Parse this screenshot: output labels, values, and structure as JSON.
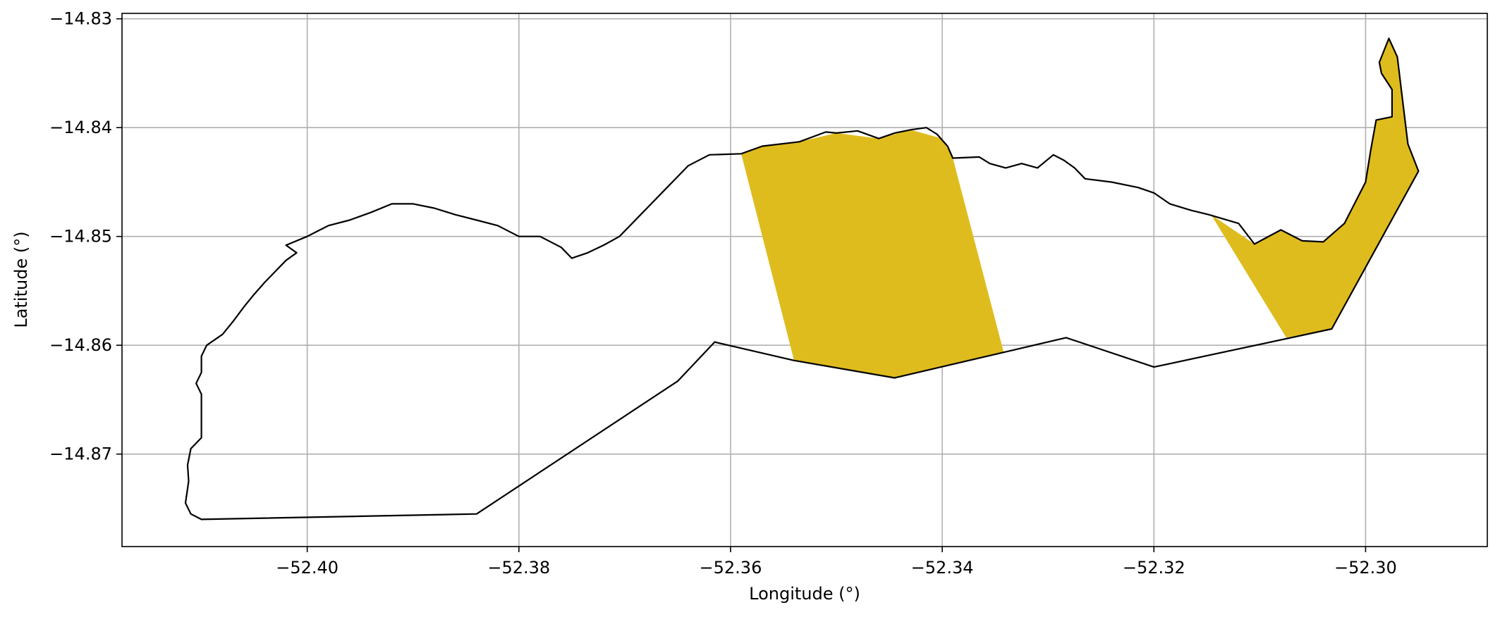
{
  "chart_data": {
    "type": "map",
    "xlabel": "Longitude (°)",
    "ylabel": "Latitude (°)",
    "xlim": [
      -52.4175,
      -52.2885
    ],
    "ylim": [
      -14.8785,
      -14.8295
    ],
    "xticks": [
      -52.4,
      -52.38,
      -52.36,
      -52.34,
      -52.32,
      -52.3
    ],
    "yticks": [
      -14.83,
      -14.84,
      -14.85,
      -14.86,
      -14.87
    ],
    "xtick_labels": [
      "−52.40",
      "−52.38",
      "−52.36",
      "−52.34",
      "−52.32",
      "−52.30"
    ],
    "ytick_labels": [
      "−14.83",
      "−14.84",
      "−14.85",
      "−14.86",
      "−14.87"
    ],
    "grid": true,
    "grid_color": "#b0b0b0",
    "fill_color": "#dfbc1e",
    "outline_color": "#000000",
    "highlight_regions": [
      {
        "points": [
          [
            -52.359,
            -14.8424
          ],
          [
            -52.357,
            -14.8417
          ],
          [
            -52.3535,
            -14.8413
          ],
          [
            -52.35,
            -14.8405
          ],
          [
            -52.346,
            -14.841
          ],
          [
            -52.343,
            -14.8402
          ],
          [
            -52.34,
            -14.841
          ],
          [
            -52.339,
            -14.8428
          ],
          [
            -52.3342,
            -14.8606
          ],
          [
            -52.3445,
            -14.863
          ],
          [
            -52.354,
            -14.8614
          ]
        ]
      },
      {
        "points": [
          [
            -52.3146,
            -14.848
          ],
          [
            -52.3105,
            -14.8507
          ],
          [
            -52.308,
            -14.8494
          ],
          [
            -52.306,
            -14.8504
          ],
          [
            -52.304,
            -14.8505
          ],
          [
            -52.302,
            -14.8488
          ],
          [
            -52.3,
            -14.845
          ],
          [
            -52.2995,
            -14.842
          ],
          [
            -52.299,
            -14.8393
          ],
          [
            -52.2975,
            -14.839
          ],
          [
            -52.2975,
            -14.8365
          ],
          [
            -52.2985,
            -14.835
          ],
          [
            -52.2987,
            -14.834
          ],
          [
            -52.2978,
            -14.8318
          ],
          [
            -52.297,
            -14.8335
          ],
          [
            -52.296,
            -14.8415
          ],
          [
            -52.295,
            -14.844
          ],
          [
            -52.3032,
            -14.8585
          ],
          [
            -52.3075,
            -14.8593
          ]
        ]
      }
    ],
    "coastline": [
      [
        -52.359,
        -14.8424
      ],
      [
        -52.357,
        -14.8417
      ],
      [
        -52.3535,
        -14.8413
      ],
      [
        -52.351,
        -14.8404
      ],
      [
        -52.35,
        -14.8405
      ],
      [
        -52.348,
        -14.8403
      ],
      [
        -52.346,
        -14.841
      ],
      [
        -52.3445,
        -14.8405
      ],
      [
        -52.343,
        -14.8402
      ],
      [
        -52.3415,
        -14.84
      ],
      [
        -52.3405,
        -14.8406
      ],
      [
        -52.3395,
        -14.8417
      ],
      [
        -52.339,
        -14.8428
      ],
      [
        -52.3365,
        -14.8427
      ],
      [
        -52.3355,
        -14.8433
      ],
      [
        -52.334,
        -14.8437
      ],
      [
        -52.3325,
        -14.8433
      ],
      [
        -52.331,
        -14.8437
      ],
      [
        -52.3295,
        -14.8425
      ],
      [
        -52.3285,
        -14.843
      ],
      [
        -52.3275,
        -14.8437
      ],
      [
        -52.3265,
        -14.8447
      ],
      [
        -52.324,
        -14.845
      ],
      [
        -52.3215,
        -14.8455
      ],
      [
        -52.32,
        -14.846
      ],
      [
        -52.3185,
        -14.847
      ],
      [
        -52.3165,
        -14.8476
      ],
      [
        -52.3148,
        -14.848
      ],
      [
        -52.312,
        -14.8488
      ],
      [
        -52.3105,
        -14.8507
      ],
      [
        -52.308,
        -14.8494
      ],
      [
        -52.306,
        -14.8504
      ],
      [
        -52.304,
        -14.8505
      ],
      [
        -52.302,
        -14.8488
      ],
      [
        -52.3,
        -14.845
      ],
      [
        -52.2995,
        -14.842
      ],
      [
        -52.299,
        -14.8393
      ],
      [
        -52.2975,
        -14.839
      ],
      [
        -52.2975,
        -14.8365
      ],
      [
        -52.2985,
        -14.835
      ],
      [
        -52.2987,
        -14.834
      ],
      [
        -52.2978,
        -14.8318
      ],
      [
        -52.297,
        -14.8335
      ],
      [
        -52.296,
        -14.8415
      ],
      [
        -52.295,
        -14.844
      ],
      [
        -52.3032,
        -14.8585
      ],
      [
        -52.32,
        -14.862
      ],
      [
        -52.3283,
        -14.8593
      ],
      [
        -52.3445,
        -14.863
      ],
      [
        -52.354,
        -14.8614
      ],
      [
        -52.3615,
        -14.8597
      ],
      [
        -52.365,
        -14.8633
      ],
      [
        -52.384,
        -14.8755
      ],
      [
        -52.41,
        -14.876
      ],
      [
        -52.411,
        -14.8755
      ],
      [
        -52.4115,
        -14.8745
      ],
      [
        -52.4112,
        -14.8725
      ],
      [
        -52.4113,
        -14.871
      ],
      [
        -52.411,
        -14.8695
      ],
      [
        -52.41,
        -14.8685
      ],
      [
        -52.41,
        -14.866
      ],
      [
        -52.41,
        -14.8645
      ],
      [
        -52.4105,
        -14.8635
      ],
      [
        -52.41,
        -14.8625
      ],
      [
        -52.41,
        -14.861
      ],
      [
        -52.4095,
        -14.86
      ],
      [
        -52.408,
        -14.859
      ],
      [
        -52.407,
        -14.8578
      ],
      [
        -52.406,
        -14.8565
      ],
      [
        -52.405,
        -14.8553
      ],
      [
        -52.404,
        -14.8542
      ],
      [
        -52.403,
        -14.8532
      ],
      [
        -52.402,
        -14.8522
      ],
      [
        -52.401,
        -14.8515
      ],
      [
        -52.402,
        -14.8508
      ],
      [
        -52.4,
        -14.85
      ],
      [
        -52.399,
        -14.8495
      ],
      [
        -52.398,
        -14.849
      ],
      [
        -52.396,
        -14.8485
      ],
      [
        -52.394,
        -14.8478
      ],
      [
        -52.392,
        -14.847
      ],
      [
        -52.39,
        -14.847
      ],
      [
        -52.388,
        -14.8474
      ],
      [
        -52.386,
        -14.848
      ],
      [
        -52.384,
        -14.8485
      ],
      [
        -52.382,
        -14.849
      ],
      [
        -52.38,
        -14.85
      ],
      [
        -52.378,
        -14.85
      ],
      [
        -52.376,
        -14.851
      ],
      [
        -52.375,
        -14.852
      ],
      [
        -52.3735,
        -14.8515
      ],
      [
        -52.372,
        -14.8508
      ],
      [
        -52.3705,
        -14.85
      ],
      [
        -52.3685,
        -14.848
      ],
      [
        -52.366,
        -14.8455
      ],
      [
        -52.364,
        -14.8435
      ],
      [
        -52.362,
        -14.8425
      ]
    ]
  }
}
